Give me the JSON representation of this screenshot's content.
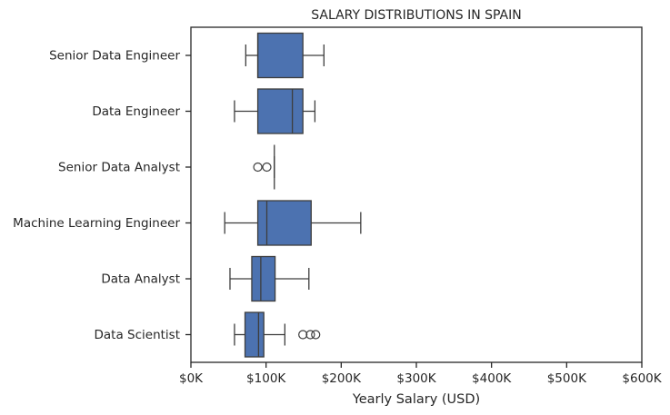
{
  "chart_data": {
    "type": "box",
    "orientation": "horizontal",
    "title": "SALARY DISTRIBUTIONS IN SPAIN",
    "xlabel": "Yearly Salary (USD)",
    "ylabel": "",
    "xlim": [
      0,
      600000
    ],
    "xticks": [
      0,
      100000,
      200000,
      300000,
      400000,
      500000,
      600000
    ],
    "xtick_labels": [
      "$0K",
      "$100K",
      "$200K",
      "$300K",
      "$400K",
      "$500K",
      "$600K"
    ],
    "grid": false,
    "box_color": "#4c72b0",
    "line_color": "#3d3d3d",
    "categories": [
      "Senior Data Engineer",
      "Data Engineer",
      "Senior Data Analyst",
      "Machine Learning Engineer",
      "Data Analyst",
      "Data Scientist"
    ],
    "boxes": [
      {
        "whisker_low": 73000,
        "q1": 89000,
        "median": 89000,
        "q3": 149000,
        "whisker_high": 177000,
        "outliers": []
      },
      {
        "whisker_low": 58000,
        "q1": 89000,
        "median": 135000,
        "q3": 149000,
        "whisker_high": 165000,
        "outliers": []
      },
      {
        "whisker_low": 111000,
        "q1": 111000,
        "median": 111000,
        "q3": 111000,
        "whisker_high": 111000,
        "outliers": [
          89000,
          101000
        ]
      },
      {
        "whisker_low": 45000,
        "q1": 89000,
        "median": 101000,
        "q3": 160000,
        "whisker_high": 226000,
        "outliers": []
      },
      {
        "whisker_low": 52000,
        "q1": 81000,
        "median": 93000,
        "q3": 112000,
        "whisker_high": 157000,
        "outliers": []
      },
      {
        "whisker_low": 58000,
        "q1": 72000,
        "median": 90000,
        "q3": 97000,
        "whisker_high": 125000,
        "outliers": [
          149000,
          159000,
          166000
        ]
      }
    ]
  }
}
